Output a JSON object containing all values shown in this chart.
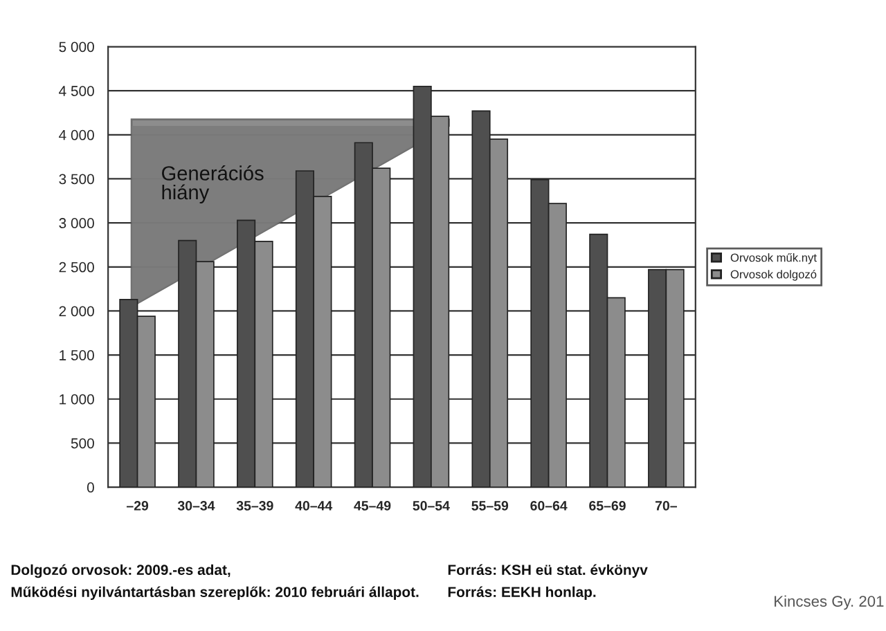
{
  "chart_data": {
    "type": "bar",
    "categories": [
      "–29",
      "30–34",
      "35–39",
      "40–44",
      "45–49",
      "50–54",
      "55–59",
      "60–64",
      "65–69",
      "70–"
    ],
    "series": [
      {
        "name": "Orvosok műk.nyt",
        "color": "#4f4f4f",
        "values": [
          2130,
          2800,
          3030,
          3590,
          3910,
          4550,
          4270,
          3490,
          2870,
          2470
        ]
      },
      {
        "name": "Orvosok dolgozó",
        "color": "#8c8c8c",
        "values": [
          1940,
          2560,
          2790,
          3300,
          3620,
          4210,
          3950,
          3220,
          2150,
          2470
        ]
      }
    ],
    "ylim": [
      0,
      5000
    ],
    "yticks": [
      0,
      500,
      {
        "value": 1000,
        "label": "1 000"
      },
      {
        "value": 1500,
        "label": "1 500"
      },
      {
        "value": 2000,
        "label": "2 000"
      },
      {
        "value": 2500,
        "label": "2 500"
      },
      {
        "value": 3000,
        "label": "3 000"
      },
      {
        "value": 3500,
        "label": "3 500"
      },
      {
        "value": 4000,
        "label": "4 000"
      },
      {
        "value": 4500,
        "label": "4 500"
      },
      {
        "value": 5000,
        "label": "5 000"
      }
    ],
    "grid": "y",
    "legend": "right",
    "annotations": [
      "Generációs hiány",
      "Dolgozó orvosok: 2009.-es adat,",
      "Működési nyilvántartásban szereplők: 2010 februári állapot.",
      "Forrás: KSH eü stat. évkönyv",
      "Forrás: EEKH honlap.",
      "Kincses Gy. 201"
    ]
  }
}
